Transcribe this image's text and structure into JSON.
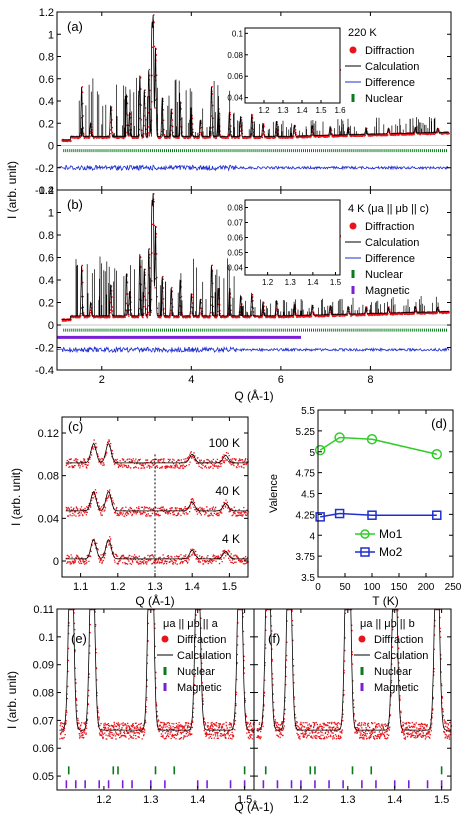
{
  "colors": {
    "diffraction": "#e8141b",
    "calculation": "#000000",
    "difference": "#1f2fd0",
    "nuclear": "#0b7a1e",
    "magnetic": "#7b1fd6",
    "mo1": "#32cc2a",
    "mo2": "#1f2fd0"
  },
  "chart_data": [
    {
      "id": "a",
      "type": "scatter",
      "panel_label": "(a)",
      "condition": "220 K",
      "ylabel": "I (arb. unit)",
      "xlabel": "",
      "xlim": [
        1.0,
        9.8
      ],
      "ylim": [
        -0.4,
        1.2
      ],
      "yticks": [
        "-0.4",
        "-0.2",
        "0",
        "0.2",
        "0.4",
        "0.6",
        "0.8",
        "1",
        "1.2"
      ],
      "legend": [
        "Diffraction",
        "Calculation",
        "Difference",
        "Nuclear"
      ],
      "series_note": "profile",
      "peaks": [
        [
          1.55,
          0.45
        ],
        [
          1.75,
          0.12
        ],
        [
          2.2,
          0.28
        ],
        [
          2.55,
          0.38
        ],
        [
          2.62,
          0.22
        ],
        [
          2.85,
          0.55
        ],
        [
          2.95,
          0.42
        ],
        [
          3.05,
          0.6
        ],
        [
          3.12,
          0.95
        ],
        [
          3.15,
          1.02
        ],
        [
          3.2,
          0.8
        ],
        [
          3.35,
          0.35
        ],
        [
          3.55,
          0.25
        ],
        [
          3.75,
          0.32
        ],
        [
          4.0,
          0.2
        ],
        [
          4.2,
          0.15
        ],
        [
          4.45,
          0.45
        ],
        [
          4.6,
          0.25
        ],
        [
          4.85,
          0.22
        ],
        [
          5.1,
          0.18
        ],
        [
          5.35,
          0.2
        ],
        [
          5.6,
          0.12
        ],
        [
          5.9,
          0.14
        ],
        [
          6.3,
          0.1
        ],
        [
          6.7,
          0.09
        ],
        [
          7.1,
          0.08
        ],
        [
          7.5,
          0.07
        ],
        [
          7.9,
          0.06
        ],
        [
          8.4,
          0.05
        ],
        [
          9.0,
          0.05
        ],
        [
          9.5,
          0.04
        ]
      ],
      "nuclear_tick_y": -0.05,
      "difference_y": -0.2,
      "inset": {
        "xlim": [
          1.1,
          1.6
        ],
        "ylim": [
          0.035,
          0.105
        ],
        "xticks": [
          "1.2",
          "1.3",
          "1.4",
          "1.5",
          "1.6"
        ],
        "yticks": [
          "0.04",
          "0.06",
          "0.08",
          "0.1"
        ],
        "peaks": [
          [
            1.13,
            0.075
          ],
          [
            1.175,
            0.072
          ],
          [
            1.3,
            0.105
          ],
          [
            1.4,
            0.071
          ],
          [
            1.49,
            0.073
          ]
        ],
        "nuclear_ticks": [
          1.13,
          1.175,
          1.3
        ]
      }
    },
    {
      "id": "b",
      "type": "scatter",
      "panel_label": "(b)",
      "condition": "4 K (μa || μb || c)",
      "ylabel": "I (arb. unit)",
      "xlabel": "Q (Å-1)",
      "xlim": [
        1.0,
        9.8
      ],
      "ylim": [
        -0.4,
        1.2
      ],
      "xticks": [
        "2",
        "4",
        "6",
        "8"
      ],
      "yticks": [
        "-0.4",
        "-0.2",
        "0",
        "0.2",
        "0.4",
        "0.6",
        "0.8",
        "1",
        "1.2"
      ],
      "legend": [
        "Diffraction",
        "Calculation",
        "Difference",
        "Nuclear",
        "Magnetic"
      ],
      "peaks": [
        [
          1.55,
          0.45
        ],
        [
          1.75,
          0.12
        ],
        [
          2.2,
          0.28
        ],
        [
          2.55,
          0.38
        ],
        [
          2.62,
          0.22
        ],
        [
          2.85,
          0.55
        ],
        [
          2.95,
          0.42
        ],
        [
          3.05,
          0.6
        ],
        [
          3.12,
          0.95
        ],
        [
          3.15,
          1.02
        ],
        [
          3.2,
          0.8
        ],
        [
          3.35,
          0.35
        ],
        [
          3.55,
          0.25
        ],
        [
          3.75,
          0.32
        ],
        [
          4.0,
          0.2
        ],
        [
          4.2,
          0.15
        ],
        [
          4.45,
          0.45
        ],
        [
          4.6,
          0.25
        ],
        [
          4.85,
          0.22
        ],
        [
          5.1,
          0.18
        ],
        [
          5.35,
          0.2
        ],
        [
          5.6,
          0.12
        ],
        [
          5.9,
          0.14
        ],
        [
          6.3,
          0.1
        ],
        [
          6.7,
          0.09
        ],
        [
          7.1,
          0.08
        ],
        [
          7.5,
          0.07
        ],
        [
          7.9,
          0.06
        ],
        [
          8.4,
          0.05
        ],
        [
          9.0,
          0.05
        ],
        [
          9.5,
          0.04
        ]
      ],
      "nuclear_tick_y": -0.05,
      "magnetic_tick_y": -0.11,
      "magnetic_range": [
        1.0,
        6.45
      ],
      "difference_y": -0.22,
      "inset": {
        "xlim": [
          1.1,
          1.52
        ],
        "ylim": [
          0.035,
          0.085
        ],
        "xticks": [
          "1.2",
          "1.3",
          "1.4",
          "1.5"
        ],
        "yticks": [
          "0.04",
          "0.05",
          "0.06",
          "0.07",
          "0.08"
        ],
        "peaks": [
          [
            1.13,
            0.072
          ],
          [
            1.175,
            0.07
          ],
          [
            1.3,
            0.085
          ],
          [
            1.4,
            0.066
          ],
          [
            1.49,
            0.066
          ]
        ],
        "nuclear_ticks": [
          1.13,
          1.175,
          1.3
        ],
        "magnetic_ticks": [
          1.12,
          1.15,
          1.18,
          1.2,
          1.23,
          1.26,
          1.29,
          1.32,
          1.35,
          1.38,
          1.41,
          1.44,
          1.47,
          1.5
        ]
      }
    },
    {
      "id": "c",
      "type": "scatter",
      "panel_label": "(c)",
      "ylabel": "I (arb. unit)",
      "xlabel": "Q (Å-1)",
      "xlim": [
        1.05,
        1.55
      ],
      "ylim": [
        -0.015,
        0.135
      ],
      "xticks": [
        "1.1",
        "1.2",
        "1.3",
        "1.4",
        "1.5"
      ],
      "yticks": [
        "0",
        "0.04",
        "0.08",
        "0.12"
      ],
      "series": [
        {
          "name": "100 K",
          "offset": 0.09
        },
        {
          "name": "40 K",
          "offset": 0.045
        },
        {
          "name": "4 K",
          "offset": 0.0
        }
      ],
      "peaks": [
        [
          1.135,
          0.018
        ],
        [
          1.175,
          0.018
        ],
        [
          1.4,
          0.008
        ],
        [
          1.49,
          0.007
        ]
      ]
    },
    {
      "id": "d",
      "type": "line",
      "panel_label": "(d)",
      "xlabel": "T (K)",
      "ylabel": "Valence",
      "xlim": [
        0,
        250
      ],
      "ylim": [
        3.5,
        5.5
      ],
      "xticks": [
        "0",
        "50",
        "100",
        "150",
        "200",
        "250"
      ],
      "yticks": [
        "3.5",
        "3.75",
        "4",
        "4.25",
        "4.5",
        "4.75",
        "5",
        "5.25",
        "5.5"
      ],
      "series": [
        {
          "name": "Mo1",
          "x": [
            4,
            40,
            100,
            220
          ],
          "y": [
            5.02,
            5.17,
            5.15,
            4.97
          ]
        },
        {
          "name": "Mo2",
          "x": [
            4,
            40,
            100,
            220
          ],
          "y": [
            4.22,
            4.26,
            4.24,
            4.24
          ]
        }
      ]
    },
    {
      "id": "e",
      "type": "scatter",
      "panel_label": "(e)",
      "condition": "μa || μb || a",
      "ylabel": "I (arb. unit)",
      "xlabel": "Q (Å-1)",
      "xlim": [
        1.1,
        1.52
      ],
      "ylim": [
        0.045,
        0.11
      ],
      "xticks": [
        "1.2",
        "1.3",
        "1.4",
        "1.5"
      ],
      "yticks": [
        "0.05",
        "0.06",
        "0.07",
        "0.08",
        "0.09",
        "0.1",
        "0.11"
      ],
      "legend": [
        "Diffraction",
        "Calculation",
        "Nuclear",
        "Magnetic"
      ],
      "peaks": [
        [
          1.13,
          0.078
        ],
        [
          1.175,
          0.075
        ],
        [
          1.3,
          0.105
        ],
        [
          1.4,
          0.073
        ],
        [
          1.49,
          0.074
        ]
      ],
      "nuclear_ticks": [
        1.125,
        1.22,
        1.23,
        1.31,
        1.35,
        1.5
      ],
      "magnetic_ticks": [
        1.12,
        1.14,
        1.16,
        1.19,
        1.21,
        1.24,
        1.26,
        1.3,
        1.33,
        1.4,
        1.42,
        1.47,
        1.5
      ]
    },
    {
      "id": "f",
      "type": "scatter",
      "panel_label": "(f)",
      "condition": "μa || μb || b",
      "xlabel": "Q (Å-1)",
      "xlim": [
        1.1,
        1.52
      ],
      "ylim": [
        0.045,
        0.11
      ],
      "xticks": [
        "1.2",
        "1.3",
        "1.4",
        "1.5"
      ],
      "legend": [
        "Diffraction",
        "Calculation",
        "Nuclear",
        "Magnetic"
      ],
      "peaks": [
        [
          1.13,
          0.078
        ],
        [
          1.175,
          0.075
        ],
        [
          1.3,
          0.105
        ],
        [
          1.4,
          0.073
        ],
        [
          1.49,
          0.074
        ]
      ],
      "nuclear_ticks": [
        1.125,
        1.22,
        1.23,
        1.31,
        1.35,
        1.5
      ],
      "magnetic_ticks": [
        1.12,
        1.15,
        1.18,
        1.2,
        1.23,
        1.26,
        1.29,
        1.33,
        1.36,
        1.4,
        1.43,
        1.47,
        1.5
      ]
    }
  ]
}
